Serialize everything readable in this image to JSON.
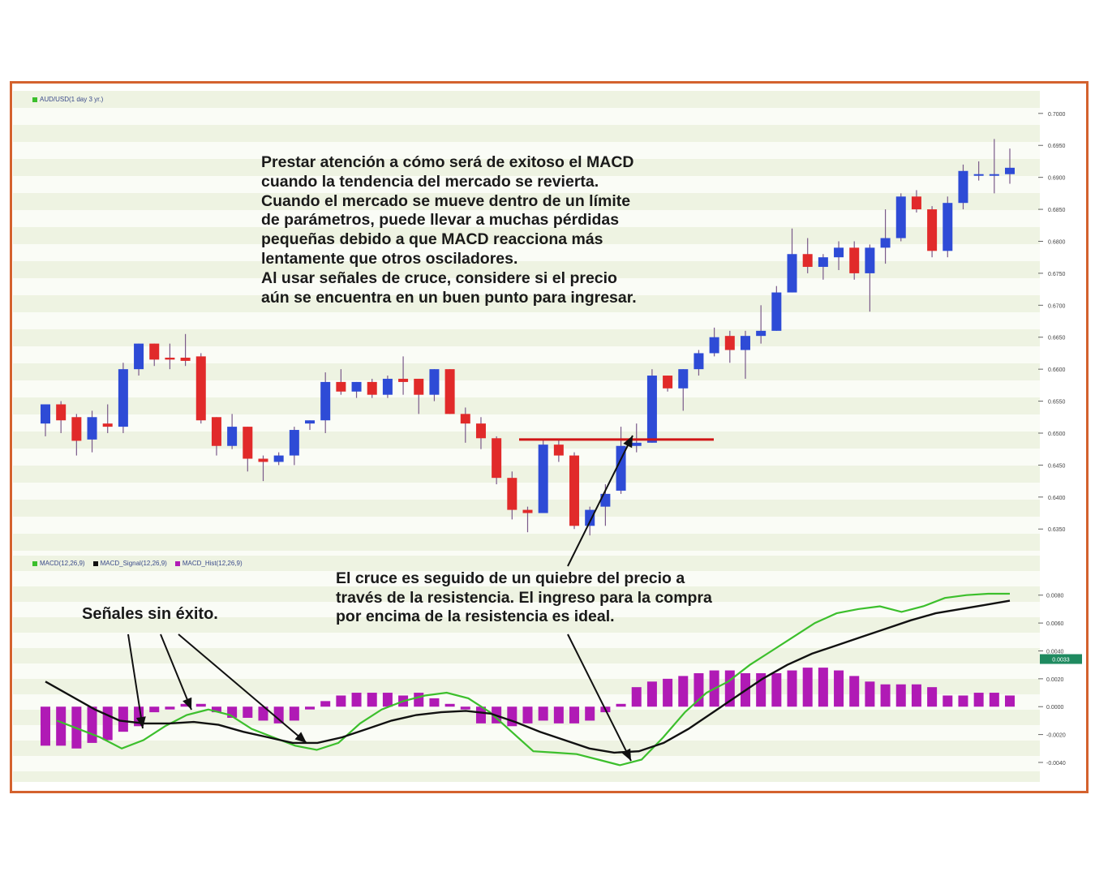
{
  "colors": {
    "frame": "#d4622e",
    "band_light": "#eef3e2",
    "band_white": "#fafcf6",
    "candle_up": "#2e4bd6",
    "candle_down": "#e12a2a",
    "wick": "#7a5a8a",
    "macd_line": "#3cbf2c",
    "signal_line": "#111111",
    "histogram": "#b01ab5",
    "resistance": "#d01515",
    "axis_badge": "#1f8a60"
  },
  "legend": {
    "price": "AUD/USD(1 day 3 yr.)",
    "macd": "MACD(12,26,9)",
    "signal": "MACD_Signal(12,26,9)",
    "hist": "MACD_Hist(12,26,9)"
  },
  "annotations": {
    "main": "Prestar atención a cómo será de exitoso el MACD\ncuando la tendencia del mercado se revierta.\nCuando el mercado se mueve dentro de un límite\nde parámetros, puede llevar a muchas pérdidas\npequeñas debido a que MACD reacciona más\nlentamente que otros osciladores.\nAl usar señales de cruce, considere si el precio\naún se encuentra en un buen punto para ingresar.",
    "cross": "El cruce es seguido de un quiebre del precio a\ntravés de la resistencia. El ingreso para la compra\npor encima de la resistencia es ideal.",
    "fail": "Señales sin éxito."
  },
  "chart_data": {
    "type": "candlestick",
    "price_axis": {
      "ticks": [
        "0.7000",
        "0.6950",
        "0.6900",
        "0.6850",
        "0.6800",
        "0.6750",
        "0.6700",
        "0.6650",
        "0.6600",
        "0.6550",
        "0.6500",
        "0.6450",
        "0.6400",
        "0.6350"
      ],
      "range": [
        0.633,
        0.7015
      ]
    },
    "candles": [
      {
        "o": 0.6515,
        "h": 0.6545,
        "l": 0.6495,
        "c": 0.6545
      },
      {
        "o": 0.6545,
        "h": 0.655,
        "l": 0.65,
        "c": 0.652
      },
      {
        "o": 0.6525,
        "h": 0.653,
        "l": 0.6465,
        "c": 0.6488
      },
      {
        "o": 0.649,
        "h": 0.6535,
        "l": 0.647,
        "c": 0.6525
      },
      {
        "o": 0.6515,
        "h": 0.6545,
        "l": 0.65,
        "c": 0.651
      },
      {
        "o": 0.651,
        "h": 0.661,
        "l": 0.65,
        "c": 0.66
      },
      {
        "o": 0.66,
        "h": 0.664,
        "l": 0.659,
        "c": 0.664
      },
      {
        "o": 0.664,
        "h": 0.664,
        "l": 0.6605,
        "c": 0.6615
      },
      {
        "o": 0.6618,
        "h": 0.664,
        "l": 0.66,
        "c": 0.6615
      },
      {
        "o": 0.6618,
        "h": 0.6655,
        "l": 0.6605,
        "c": 0.6613
      },
      {
        "o": 0.662,
        "h": 0.6625,
        "l": 0.6515,
        "c": 0.652
      },
      {
        "o": 0.6525,
        "h": 0.6525,
        "l": 0.6465,
        "c": 0.648
      },
      {
        "o": 0.648,
        "h": 0.653,
        "l": 0.6475,
        "c": 0.651
      },
      {
        "o": 0.651,
        "h": 0.651,
        "l": 0.644,
        "c": 0.646
      },
      {
        "o": 0.646,
        "h": 0.6465,
        "l": 0.6425,
        "c": 0.6455
      },
      {
        "o": 0.6455,
        "h": 0.647,
        "l": 0.645,
        "c": 0.6465
      },
      {
        "o": 0.6465,
        "h": 0.651,
        "l": 0.645,
        "c": 0.6505
      },
      {
        "o": 0.6515,
        "h": 0.652,
        "l": 0.6505,
        "c": 0.652
      },
      {
        "o": 0.652,
        "h": 0.6595,
        "l": 0.65,
        "c": 0.658
      },
      {
        "o": 0.658,
        "h": 0.66,
        "l": 0.656,
        "c": 0.6565
      },
      {
        "o": 0.6565,
        "h": 0.658,
        "l": 0.6555,
        "c": 0.658
      },
      {
        "o": 0.658,
        "h": 0.6585,
        "l": 0.6555,
        "c": 0.656
      },
      {
        "o": 0.656,
        "h": 0.659,
        "l": 0.6555,
        "c": 0.6585
      },
      {
        "o": 0.6585,
        "h": 0.662,
        "l": 0.656,
        "c": 0.658
      },
      {
        "o": 0.6585,
        "h": 0.6585,
        "l": 0.653,
        "c": 0.656
      },
      {
        "o": 0.656,
        "h": 0.66,
        "l": 0.655,
        "c": 0.66
      },
      {
        "o": 0.66,
        "h": 0.66,
        "l": 0.653,
        "c": 0.653
      },
      {
        "o": 0.653,
        "h": 0.654,
        "l": 0.6485,
        "c": 0.6515
      },
      {
        "o": 0.6515,
        "h": 0.6525,
        "l": 0.6475,
        "c": 0.6492
      },
      {
        "o": 0.6492,
        "h": 0.6495,
        "l": 0.642,
        "c": 0.643
      },
      {
        "o": 0.643,
        "h": 0.644,
        "l": 0.6365,
        "c": 0.638
      },
      {
        "o": 0.638,
        "h": 0.6385,
        "l": 0.6345,
        "c": 0.6375
      },
      {
        "o": 0.6375,
        "h": 0.649,
        "l": 0.6375,
        "c": 0.6482
      },
      {
        "o": 0.6482,
        "h": 0.649,
        "l": 0.6455,
        "c": 0.6465
      },
      {
        "o": 0.6465,
        "h": 0.647,
        "l": 0.635,
        "c": 0.6355
      },
      {
        "o": 0.6355,
        "h": 0.6385,
        "l": 0.634,
        "c": 0.638
      },
      {
        "o": 0.6385,
        "h": 0.642,
        "l": 0.6355,
        "c": 0.6405
      },
      {
        "o": 0.641,
        "h": 0.651,
        "l": 0.6405,
        "c": 0.648
      },
      {
        "o": 0.648,
        "h": 0.6515,
        "l": 0.647,
        "c": 0.6485
      },
      {
        "o": 0.6485,
        "h": 0.66,
        "l": 0.6485,
        "c": 0.659
      },
      {
        "o": 0.659,
        "h": 0.659,
        "l": 0.6565,
        "c": 0.657
      },
      {
        "o": 0.657,
        "h": 0.66,
        "l": 0.6535,
        "c": 0.66
      },
      {
        "o": 0.66,
        "h": 0.663,
        "l": 0.659,
        "c": 0.6625
      },
      {
        "o": 0.6625,
        "h": 0.6665,
        "l": 0.662,
        "c": 0.665
      },
      {
        "o": 0.6652,
        "h": 0.666,
        "l": 0.661,
        "c": 0.663
      },
      {
        "o": 0.663,
        "h": 0.666,
        "l": 0.6585,
        "c": 0.6652
      },
      {
        "o": 0.6652,
        "h": 0.67,
        "l": 0.664,
        "c": 0.666
      },
      {
        "o": 0.666,
        "h": 0.673,
        "l": 0.666,
        "c": 0.672
      },
      {
        "o": 0.672,
        "h": 0.682,
        "l": 0.672,
        "c": 0.678
      },
      {
        "o": 0.678,
        "h": 0.6805,
        "l": 0.675,
        "c": 0.676
      },
      {
        "o": 0.676,
        "h": 0.678,
        "l": 0.674,
        "c": 0.6775
      },
      {
        "o": 0.6775,
        "h": 0.68,
        "l": 0.6755,
        "c": 0.679
      },
      {
        "o": 0.679,
        "h": 0.68,
        "l": 0.674,
        "c": 0.675
      },
      {
        "o": 0.675,
        "h": 0.6795,
        "l": 0.669,
        "c": 0.679
      },
      {
        "o": 0.679,
        "h": 0.685,
        "l": 0.6765,
        "c": 0.6805
      },
      {
        "o": 0.6805,
        "h": 0.6875,
        "l": 0.68,
        "c": 0.687
      },
      {
        "o": 0.687,
        "h": 0.688,
        "l": 0.6845,
        "c": 0.685
      },
      {
        "o": 0.685,
        "h": 0.6855,
        "l": 0.6775,
        "c": 0.6785
      },
      {
        "o": 0.6785,
        "h": 0.687,
        "l": 0.6775,
        "c": 0.686
      },
      {
        "o": 0.686,
        "h": 0.692,
        "l": 0.685,
        "c": 0.691
      },
      {
        "o": 0.6905,
        "h": 0.6925,
        "l": 0.6895,
        "c": 0.6905
      },
      {
        "o": 0.6905,
        "h": 0.696,
        "l": 0.6875,
        "c": 0.6905
      },
      {
        "o": 0.6905,
        "h": 0.6945,
        "l": 0.689,
        "c": 0.6915
      }
    ],
    "resistance_level": 0.649,
    "macd_axis": {
      "ticks": [
        "0.0080",
        "0.0060",
        "0.0040",
        "0.0020",
        "0.0000",
        "-0.0020",
        "-0.0040"
      ],
      "range": [
        -0.0047,
        0.0088
      ],
      "badge": "0.0033"
    },
    "macd": [
      -0.001,
      -0.0016,
      -0.0022,
      -0.003,
      -0.0024,
      -0.0014,
      -0.0006,
      -0.0002,
      -0.0006,
      -0.0016,
      -0.0022,
      -0.0028,
      -0.0031,
      -0.0026,
      -0.0012,
      -0.0002,
      0.0004,
      0.0008,
      0.001,
      0.0006,
      -0.0004,
      -0.0018,
      -0.0032,
      -0.0033,
      -0.0034,
      -0.0038,
      -0.0042,
      -0.0038,
      -0.0022,
      -0.0004,
      0.001,
      0.0018,
      0.003,
      0.004,
      0.005,
      0.006,
      0.0067,
      0.007,
      0.0072,
      0.0068,
      0.0072,
      0.0078,
      0.008,
      0.0081,
      0.0081
    ],
    "signal": [
      0.0018,
      0.0008,
      -0.0002,
      -0.001,
      -0.0012,
      -0.0012,
      -0.0011,
      -0.0013,
      -0.0018,
      -0.0022,
      -0.0026,
      -0.0026,
      -0.0022,
      -0.0016,
      -0.001,
      -0.0006,
      -0.0004,
      -0.0003,
      -0.0005,
      -0.0011,
      -0.0018,
      -0.0024,
      -0.003,
      -0.0033,
      -0.0032,
      -0.0026,
      -0.0016,
      -0.0004,
      0.0008,
      0.002,
      0.003,
      0.0038,
      0.0044,
      0.005,
      0.0056,
      0.0062,
      0.0067,
      0.007,
      0.0073,
      0.0076
    ],
    "histogram": [
      -0.0028,
      -0.0028,
      -0.003,
      -0.0026,
      -0.0024,
      -0.0018,
      -0.0014,
      -0.0004,
      -0.0002,
      0.0002,
      0.0002,
      -0.0004,
      -0.0008,
      -0.0008,
      -0.001,
      -0.0012,
      -0.001,
      -0.0002,
      0.0004,
      0.0008,
      0.001,
      0.001,
      0.001,
      0.0008,
      0.001,
      0.0006,
      0.0002,
      -0.0002,
      -0.0012,
      -0.0012,
      -0.0014,
      -0.0012,
      -0.001,
      -0.0012,
      -0.0012,
      -0.001,
      -0.0004,
      0.0002,
      0.0014,
      0.0018,
      0.002,
      0.0022,
      0.0024,
      0.0026,
      0.0026,
      0.0024,
      0.0024,
      0.0024,
      0.0026,
      0.0028,
      0.0028,
      0.0026,
      0.0022,
      0.0018,
      0.0016,
      0.0016,
      0.0016,
      0.0014,
      0.0008,
      0.0008,
      0.001,
      0.001,
      0.0008
    ]
  }
}
